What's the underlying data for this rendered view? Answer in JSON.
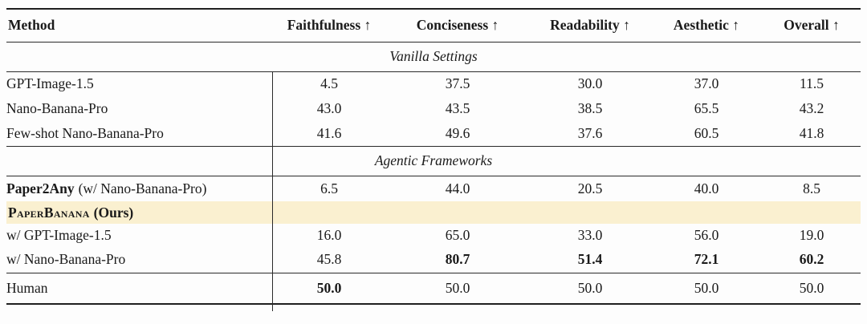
{
  "colors": {
    "highlight_row": "#FAF0D0",
    "rule": "#1f1f1f",
    "text": "#1a1a1a"
  },
  "table": {
    "columns": [
      "Method",
      "Faithfulness ↑",
      "Conciseness ↑",
      "Readability ↑",
      "Aesthetic ↑",
      "Overall ↑"
    ],
    "sections": [
      "Vanilla Settings",
      "Agentic Frameworks"
    ],
    "rows": [
      {
        "method": "GPT-Image-1.5",
        "values": [
          "4.5",
          "37.5",
          "30.0",
          "37.0",
          "11.5"
        ]
      },
      {
        "method": "Nano-Banana-Pro",
        "values": [
          "43.0",
          "43.5",
          "38.5",
          "65.5",
          "43.2"
        ]
      },
      {
        "method": "Few-shot Nano-Banana-Pro",
        "values": [
          "41.6",
          "49.6",
          "37.6",
          "60.5",
          "41.8"
        ]
      },
      {
        "method_bold": "Paper2Any",
        "method_note": "(w/ Nano-Banana-Pro)",
        "values": [
          "6.5",
          "44.0",
          "20.5",
          "40.0",
          "8.5"
        ]
      },
      {
        "method_smallcaps": "PaperBanana",
        "method_note": "(Ours)"
      },
      {
        "method": "w/ GPT-Image-1.5",
        "values": [
          "16.0",
          "65.0",
          "33.0",
          "56.0",
          "19.0"
        ]
      },
      {
        "method": "w/ Nano-Banana-Pro",
        "values": [
          "45.8",
          "80.7",
          "51.4",
          "72.1",
          "60.2"
        ]
      },
      {
        "method": "Human",
        "values": [
          "50.0",
          "50.0",
          "50.0",
          "50.0",
          "50.0"
        ]
      }
    ]
  }
}
